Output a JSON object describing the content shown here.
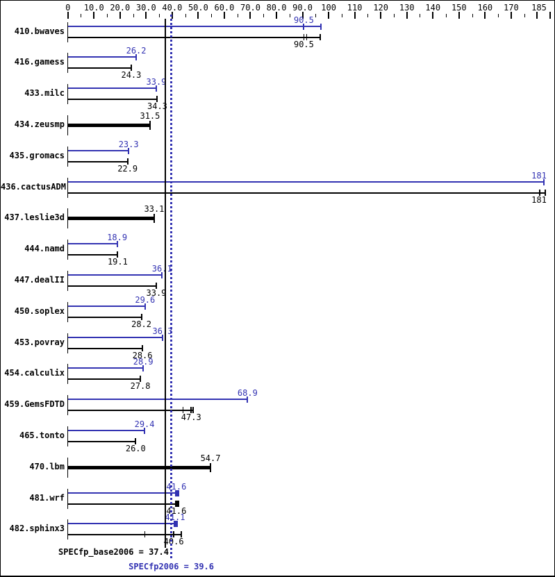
{
  "chart_data": {
    "type": "bar",
    "orientation": "horizontal",
    "colors": {
      "peak": "#3232b2",
      "base": "#000000",
      "background": "#ffffff"
    },
    "axis": {
      "min": 0,
      "max": 185,
      "minor_tick_step": 5,
      "major_tick_step": 10,
      "labels": [
        {
          "text": "0",
          "value": 0
        },
        {
          "text": "10.0",
          "value": 10
        },
        {
          "text": "20.0",
          "value": 20
        },
        {
          "text": "30.0",
          "value": 30
        },
        {
          "text": "40.0",
          "value": 40
        },
        {
          "text": "50.0",
          "value": 50
        },
        {
          "text": "60.0",
          "value": 60
        },
        {
          "text": "70.0",
          "value": 70
        },
        {
          "text": "80.0",
          "value": 80
        },
        {
          "text": "90.0",
          "value": 90
        },
        {
          "text": "100",
          "value": 100
        },
        {
          "text": "110",
          "value": 110
        },
        {
          "text": "120",
          "value": 120
        },
        {
          "text": "130",
          "value": 130
        },
        {
          "text": "140",
          "value": 140
        },
        {
          "text": "150",
          "value": 150
        },
        {
          "text": "160",
          "value": 160
        },
        {
          "text": "170",
          "value": 170
        },
        {
          "text": "185",
          "value": 185
        }
      ]
    },
    "benchmarks": [
      {
        "name": "410.bwaves",
        "peak": 90.5,
        "peak_label": "90.5",
        "base": 90.5,
        "base_label": "90.5",
        "peak_marker": 90.5,
        "peak_line_end": 97.0,
        "base_ticks": [
          90.4,
          91.4
        ],
        "base_line_end": 96.8
      },
      {
        "name": "416.gamess",
        "peak": 26.2,
        "peak_label": "26.2",
        "base": 24.3,
        "base_label": "24.3"
      },
      {
        "name": "433.milc",
        "peak": 33.9,
        "peak_label": "33.9",
        "base": 34.3,
        "base_label": "34.3"
      },
      {
        "name": "434.zeusmp",
        "single": true,
        "base": 31.5,
        "base_label": "31.5"
      },
      {
        "name": "435.gromacs",
        "peak": 23.3,
        "peak_label": "23.3",
        "base": 22.9,
        "base_label": "22.9"
      },
      {
        "name": "436.cactusADM",
        "peak": 181,
        "peak_label": "181",
        "base": 181,
        "base_label": "181",
        "peak_line_end": 182.5,
        "base_line_end": 183.0,
        "base_marker": 181
      },
      {
        "name": "437.leslie3d",
        "single": true,
        "base": 33.1,
        "base_label": "33.1"
      },
      {
        "name": "444.namd",
        "peak": 18.9,
        "peak_label": "18.9",
        "base": 19.1,
        "base_label": "19.1"
      },
      {
        "name": "447.dealII",
        "peak": 36.1,
        "peak_label": "36.1",
        "base": 33.9,
        "base_label": "33.9"
      },
      {
        "name": "450.soplex",
        "peak": 29.6,
        "peak_label": "29.6",
        "base": 28.2,
        "base_label": "28.2"
      },
      {
        "name": "453.povray",
        "peak": 36.3,
        "peak_label": "36.3",
        "base": 28.6,
        "base_label": "28.6"
      },
      {
        "name": "454.calculix",
        "peak": 28.9,
        "peak_label": "28.9",
        "base": 27.8,
        "base_label": "27.8"
      },
      {
        "name": "459.GemsFDTD",
        "peak": 68.9,
        "peak_label": "68.9",
        "base": 47.3,
        "base_label": "47.3",
        "base_marker": 47.3,
        "base_ticks": [
          43.9
        ],
        "base_line_end": 47.9
      },
      {
        "name": "465.tonto",
        "peak": 29.4,
        "peak_label": "29.4",
        "base": 26.0,
        "base_label": "26.0"
      },
      {
        "name": "470.lbm",
        "single": true,
        "base": 54.7,
        "base_label": "54.7"
      },
      {
        "name": "481.wrf",
        "peak": 41.6,
        "peak_label": "41.6",
        "base": 41.6,
        "base_label": "41.6",
        "peak_marker_thick": 41.6,
        "base_marker_thick": 41.6,
        "peak_line_end": 42.4,
        "base_line_end": 42.4
      },
      {
        "name": "482.sphinx3",
        "peak": 41.1,
        "peak_label": "41.1",
        "base": 40.6,
        "base_label": "40.6",
        "peak_marker_thick": 41.1,
        "peak_line_end": 41.9,
        "base_marker": 40.6,
        "base_ticks": [
          29.3
        ],
        "base_line_end": 43.4
      }
    ],
    "summary": {
      "base_text": "SPECfp_base2006 = 37.4",
      "base_value": 37.4,
      "peak_text": "SPECfp2006 = 39.6",
      "peak_value": 39.6
    }
  }
}
